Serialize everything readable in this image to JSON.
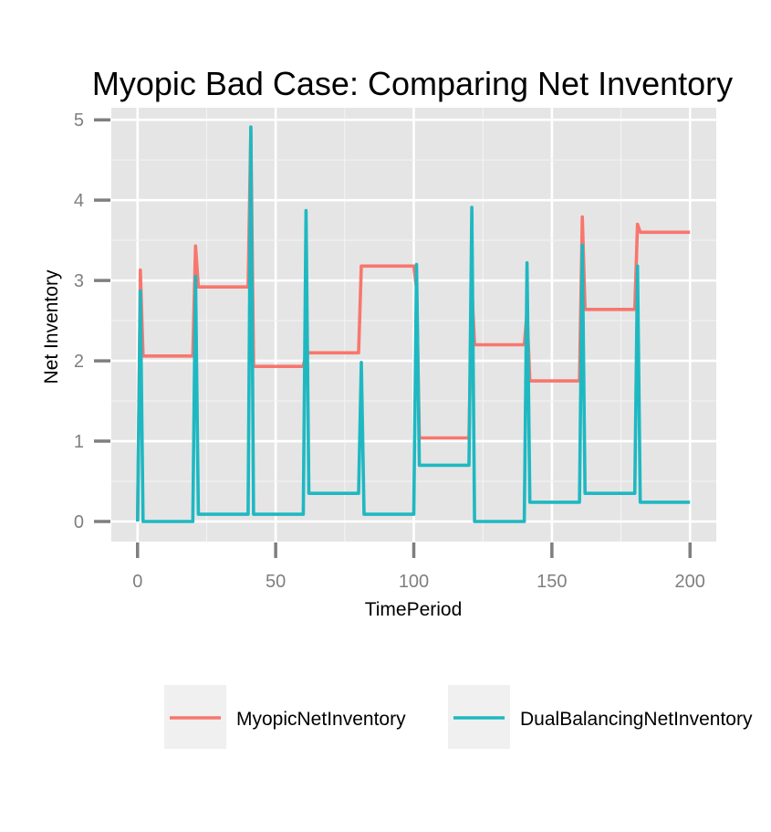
{
  "chart_data": {
    "type": "line",
    "title": "Myopic Bad Case: Comparing Net Inventory",
    "xlabel": "TimePeriod",
    "ylabel": "Net Inventory",
    "xlim": [
      -9.5,
      209.5
    ],
    "ylim": [
      -0.25,
      5.15
    ],
    "x_ticks": [
      0,
      50,
      100,
      150,
      200
    ],
    "y_ticks": [
      0,
      1,
      2,
      3,
      4,
      5
    ],
    "grid": true,
    "legend_position": "bottom",
    "colors": {
      "panel": "#e5e5e5",
      "grid_major": "#ffffff",
      "grid_minor": "#f2f2f2",
      "tick": "#7f7f7f"
    },
    "series": [
      {
        "name": "MyopicNetInventory",
        "color": "#f8766d",
        "points": [
          [
            0,
            0
          ],
          [
            1,
            3.13
          ],
          [
            2,
            2.06
          ],
          [
            20,
            2.06
          ],
          [
            21,
            3.43
          ],
          [
            22,
            2.92
          ],
          [
            40,
            2.92
          ],
          [
            41,
            4.88
          ],
          [
            42,
            1.93
          ],
          [
            60,
            1.93
          ],
          [
            61,
            2.1
          ],
          [
            80,
            2.1
          ],
          [
            81,
            3.18
          ],
          [
            100,
            3.18
          ],
          [
            101,
            2.9
          ],
          [
            102,
            1.04
          ],
          [
            120,
            1.04
          ],
          [
            121,
            2.9
          ],
          [
            122,
            2.2
          ],
          [
            140,
            2.2
          ],
          [
            141,
            2.6
          ],
          [
            142,
            1.75
          ],
          [
            160,
            1.75
          ],
          [
            161,
            3.79
          ],
          [
            162,
            2.64
          ],
          [
            180,
            2.64
          ],
          [
            181,
            3.7
          ],
          [
            182,
            3.6
          ],
          [
            200,
            3.6
          ]
        ]
      },
      {
        "name": "DualBalancingNetInventory",
        "color": "#1fb8c1",
        "points": [
          [
            0,
            0
          ],
          [
            1,
            2.87
          ],
          [
            2,
            0
          ],
          [
            20,
            0
          ],
          [
            21,
            3.05
          ],
          [
            22,
            0.09
          ],
          [
            40,
            0.09
          ],
          [
            41,
            4.91
          ],
          [
            42,
            0.09
          ],
          [
            60,
            0.09
          ],
          [
            61,
            3.87
          ],
          [
            62,
            0.35
          ],
          [
            80,
            0.35
          ],
          [
            81,
            1.98
          ],
          [
            82,
            0.09
          ],
          [
            100,
            0.09
          ],
          [
            101,
            3.2
          ],
          [
            102,
            0.7
          ],
          [
            120,
            0.7
          ],
          [
            121,
            3.91
          ],
          [
            122,
            0
          ],
          [
            140,
            0
          ],
          [
            141,
            3.22
          ],
          [
            142,
            0.24
          ],
          [
            160,
            0.24
          ],
          [
            161,
            3.44
          ],
          [
            162,
            0.35
          ],
          [
            180,
            0.35
          ],
          [
            181,
            3.18
          ],
          [
            182,
            0.24
          ],
          [
            200,
            0.24
          ]
        ]
      }
    ]
  }
}
